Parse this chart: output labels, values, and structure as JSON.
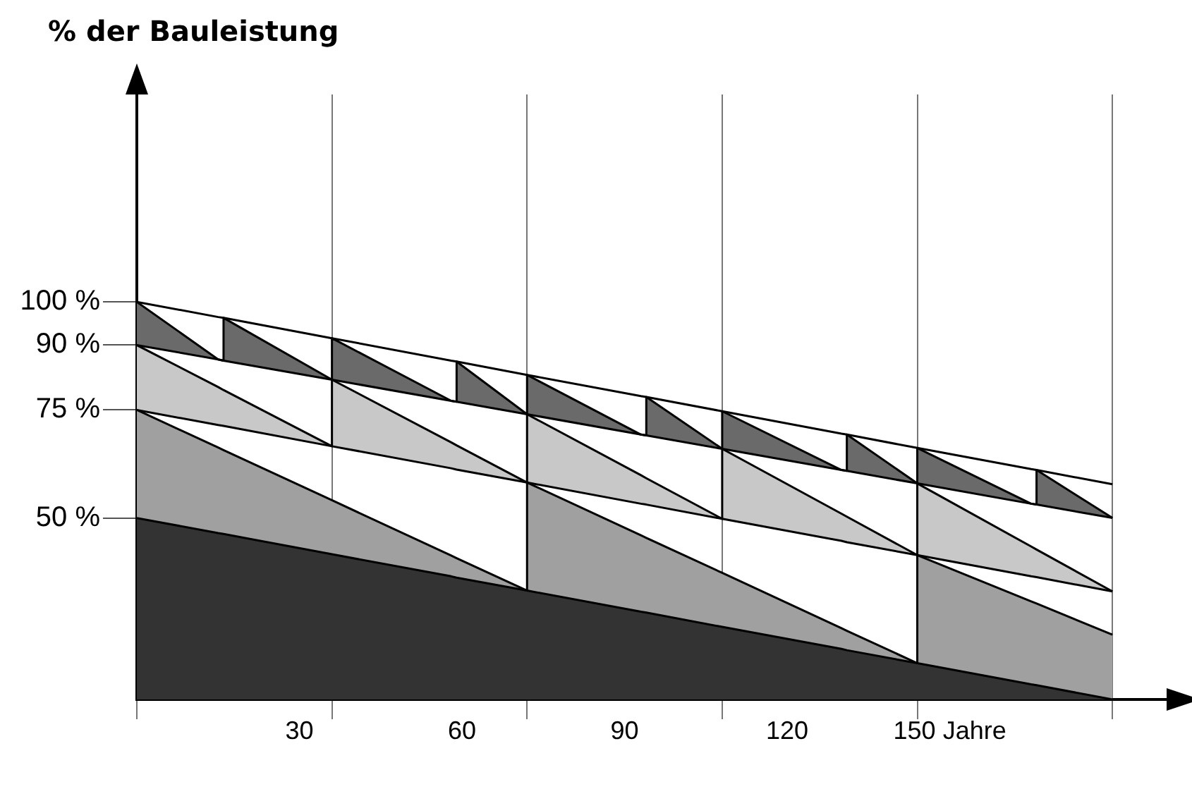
{
  "chart_data": {
    "type": "area",
    "ylabel": "% der Bauleistung",
    "x": [
      0,
      15,
      16,
      16,
      36,
      36,
      58,
      59,
      59,
      72,
      72,
      93,
      94,
      94,
      108,
      108,
      130,
      131,
      131,
      144,
      144,
      165,
      166,
      166,
      180
    ],
    "series": [
      {
        "type": "line",
        "color": "#000000",
        "values": [
          100,
          96.5,
          96.3,
          96.3,
          91.6,
          91.6,
          86.4,
          86.2,
          86.2,
          83.1,
          83.1,
          78.2,
          78,
          78,
          74.7,
          74.7,
          69.5,
          69.3,
          69.3,
          66.2,
          66.2,
          61.3,
          61.1,
          61.1,
          57.8
        ]
      },
      {
        "color": "#6a6a6a",
        "values": [
          100,
          86.7,
          86.4,
          96.3,
          82,
          91.6,
          77.1,
          76.9,
          86.2,
          74,
          83.1,
          69.3,
          69.1,
          78,
          66,
          74.7,
          61.1,
          60.9,
          69.3,
          58,
          66.2,
          53.3,
          53.1,
          61.1,
          50
        ]
      },
      {
        "type": "line",
        "color": "#000000",
        "values": [
          90,
          86.7,
          86.4,
          86.4,
          82,
          82,
          77.1,
          76.9,
          76.9,
          74,
          74,
          69.3,
          69.1,
          69.1,
          66,
          66,
          61.1,
          60.9,
          60.9,
          58,
          58,
          53.3,
          53.1,
          53.1,
          50
        ]
      },
      {
        "color": "#c8c8c8",
        "values": [
          90,
          80.3,
          79.6,
          79.6,
          66.6,
          82,
          67.5,
          66.8,
          66.8,
          58.2,
          74,
          59.9,
          59.2,
          59.2,
          49.8,
          66,
          51,
          50.3,
          50.3,
          41.4,
          58,
          43.4,
          42.7,
          42.7,
          33
        ]
      },
      {
        "type": "line",
        "color": "#000000",
        "values": [
          75,
          71.5,
          71.3,
          71.3,
          66.6,
          66.6,
          61.5,
          61.2,
          61.2,
          58.2,
          58.2,
          53.3,
          53.1,
          53.1,
          49.8,
          49.8,
          44.7,
          44.4,
          44.4,
          41.4,
          41.4,
          36.5,
          36.3,
          36.3,
          33
        ]
      },
      {
        "color": "#a0a0a0",
        "values": [
          75,
          66.3,
          65.7,
          65.7,
          54.1,
          54.1,
          41.3,
          40.7,
          40.7,
          33.2,
          58.2,
          46,
          45.4,
          45.4,
          37.3,
          37.3,
          24.5,
          23.9,
          23.9,
          16.4,
          41.4,
          30.7,
          30.2,
          30.2,
          23
        ]
      },
      {
        "color": "#333333",
        "values": [
          50,
          46.5,
          46.3,
          46.3,
          41.6,
          41.6,
          36.5,
          36.2,
          36.2,
          33.2,
          33.2,
          28.3,
          28.1,
          28.1,
          24.8,
          24.8,
          19.7,
          19.4,
          19.4,
          16.4,
          16.4,
          11.5,
          11.3,
          11.3,
          8
        ]
      }
    ],
    "xlim": [
      0,
      190
    ],
    "xticks": [
      {
        "value": 0,
        "label": null
      },
      30,
      {
        "value": 36,
        "label": null
      },
      60,
      {
        "value": 72,
        "label": null
      },
      90,
      {
        "value": 108,
        "label": null
      },
      120,
      {
        "value": 144,
        "label": null
      },
      {
        "value": 150,
        "label": "150 Jahre"
      },
      {
        "value": 180,
        "label": null
      }
    ],
    "ylim": [
      8,
      148
    ],
    "yticks": [
      {
        "value": 50,
        "label": "50 %"
      },
      {
        "value": 75,
        "label": "75 %"
      },
      {
        "value": 90,
        "label": "90 %"
      },
      {
        "value": 100,
        "label": "100 %"
      }
    ],
    "grid": "x",
    "legend": false
  }
}
